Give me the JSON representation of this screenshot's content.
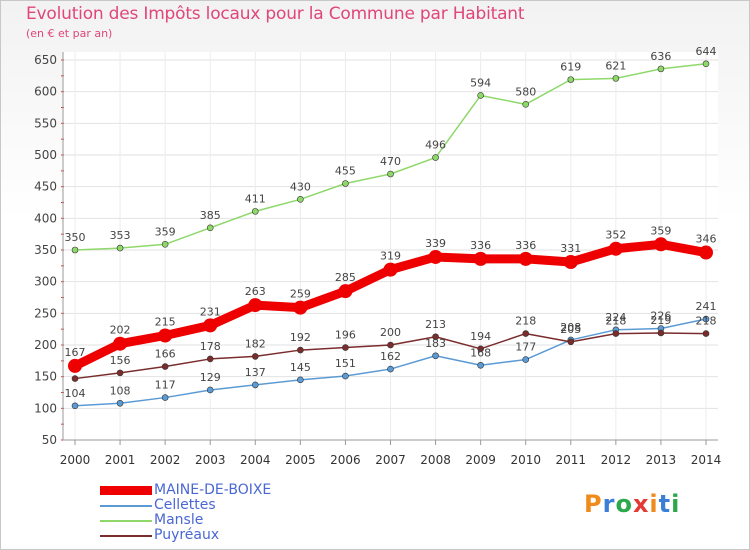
{
  "title": "Evolution des Impôts locaux pour la Commune par Habitant",
  "subtitle": "(en € et par an)",
  "logo": {
    "text": "Proxiti",
    "colors": [
      "#f08a1c",
      "#3b7fd6",
      "#2aa84a",
      "#e53935",
      "#f08a1c",
      "#3b7fd6",
      "#2aa84a"
    ]
  },
  "chart_data": {
    "type": "line",
    "title": "Evolution des Impôts locaux pour la Commune par Habitant",
    "subtitle": "(en € et par an)",
    "x": [
      "2000",
      "2001",
      "2002",
      "2003",
      "2004",
      "2005",
      "2006",
      "2007",
      "2008",
      "2009",
      "2010",
      "2011",
      "2012",
      "2013",
      "2014"
    ],
    "yticks": [
      50,
      100,
      150,
      200,
      250,
      300,
      350,
      400,
      450,
      500,
      550,
      600,
      650
    ],
    "ylim": [
      50,
      650
    ],
    "grid": true,
    "legend_position": "bottom-left",
    "series": [
      {
        "name": "MAINE-DE-BOIXE",
        "color": "#ee0000",
        "width": 9,
        "values": [
          167,
          202,
          215,
          231,
          263,
          259,
          285,
          319,
          339,
          336,
          336,
          331,
          352,
          359,
          346
        ],
        "labels": [
          "167",
          "202",
          "215",
          "231",
          "263",
          "259",
          "285",
          "319",
          "339",
          "336",
          "336",
          "331",
          "352",
          "359",
          "346"
        ]
      },
      {
        "name": "Cellettes",
        "color": "#5b9bd5",
        "width": 1.5,
        "values": [
          104,
          108,
          117,
          129,
          137,
          145,
          151,
          162,
          183,
          168,
          177,
          208,
          224,
          226,
          241
        ],
        "labels": [
          "104",
          "108",
          "117",
          "129",
          "137",
          "145",
          "151",
          "162",
          "183",
          "168",
          "177",
          "208",
          "224",
          "226",
          "241"
        ]
      },
      {
        "name": "Mansle",
        "color": "#8ed86a",
        "width": 1.5,
        "values": [
          350,
          353,
          359,
          385,
          411,
          430,
          455,
          470,
          496,
          594,
          580,
          619,
          621,
          636,
          644
        ],
        "labels": [
          "350",
          "353",
          "359",
          "385",
          "411",
          "430",
          "455",
          "470",
          "496",
          "594",
          "580",
          "619",
          "621",
          "636",
          "644"
        ]
      },
      {
        "name": "Puyréaux",
        "color": "#7b2c2c",
        "width": 1.5,
        "values": [
          147,
          156,
          166,
          178,
          182,
          192,
          196,
          200,
          213,
          194,
          218,
          205,
          218,
          219,
          218
        ],
        "labels": [
          "",
          "156",
          "166",
          "178",
          "182",
          "192",
          "196",
          "200",
          "213",
          "194",
          "218",
          "205",
          "218",
          "219",
          "218"
        ]
      }
    ]
  }
}
